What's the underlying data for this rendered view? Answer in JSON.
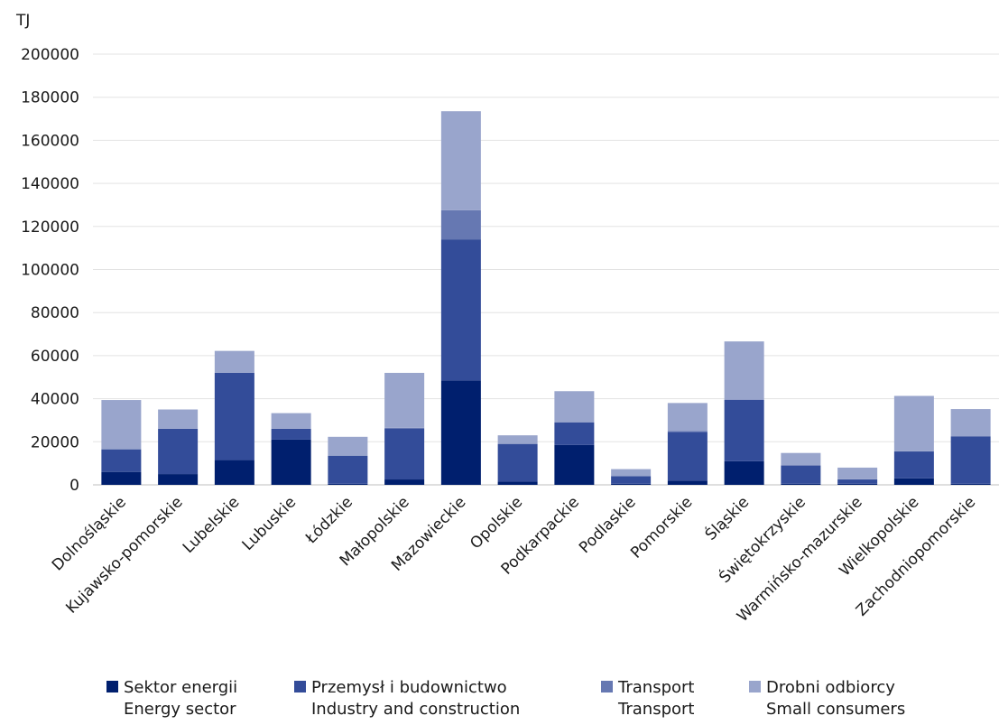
{
  "chart_data": {
    "type": "bar",
    "stacked": true,
    "unit_label": "TJ",
    "ylim": [
      0,
      200000
    ],
    "yticks": [
      "0",
      "20000",
      "40000",
      "60000",
      "80000",
      "100000",
      "120000",
      "140000",
      "160000",
      "180000",
      "200000"
    ],
    "grid": true,
    "legend_position": "bottom",
    "categories": [
      "Dolnośląskie",
      "Kujawsko-pomorskie",
      "Lubelskie",
      "Lubuskie",
      "Łódzkie",
      "Małopolskie",
      "Mazowieckie",
      "Opolskie",
      "Podkarpackie",
      "Podlaskie",
      "Pomorskie",
      "Śląskie",
      "Świętokrzyskie",
      "Warmińsko-mazurskie",
      "Wielkopolskie",
      "Zachodniopomorskie"
    ],
    "series": [
      {
        "name": "Sektor energii",
        "name_en": "Energy sector",
        "color": "#001f6e",
        "values": [
          6000,
          5000,
          11500,
          21000,
          500,
          2500,
          48500,
          1500,
          18500,
          500,
          2000,
          11000,
          500,
          500,
          3000,
          500
        ]
      },
      {
        "name": "Przemysł i budownictwo",
        "name_en": "Industry and construction",
        "color": "#334c99",
        "values": [
          10500,
          21000,
          40500,
          5000,
          13000,
          23500,
          65500,
          17500,
          10500,
          3500,
          22500,
          28500,
          8500,
          2000,
          12500,
          22000
        ]
      },
      {
        "name": "Transport",
        "name_en": "Transport",
        "color": "#6678b2",
        "values": [
          100,
          100,
          100,
          100,
          100,
          500,
          13500,
          100,
          100,
          100,
          500,
          100,
          100,
          100,
          100,
          100
        ]
      },
      {
        "name": "Drobni odbiorcy",
        "name_en": "Small consumers",
        "color": "#99a5cc",
        "values": [
          22800,
          8900,
          10100,
          7200,
          8700,
          25500,
          46000,
          3900,
          14400,
          3200,
          13000,
          27000,
          5700,
          5400,
          25700,
          12600
        ]
      }
    ]
  }
}
